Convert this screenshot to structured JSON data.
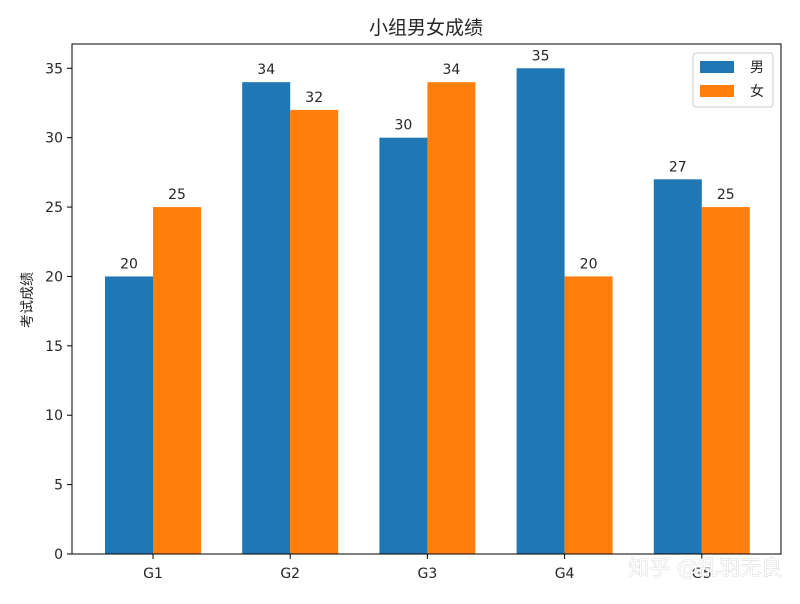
{
  "chart_data": {
    "type": "bar",
    "title": "小组男女成绩",
    "xlabel": "",
    "ylabel": "考试成绩",
    "categories": [
      "G1",
      "G2",
      "G3",
      "G4",
      "G5"
    ],
    "series": [
      {
        "name": "男",
        "color": "#1f77b4",
        "values": [
          20,
          34,
          30,
          35,
          27
        ]
      },
      {
        "name": "女",
        "color": "#ff7f0e",
        "values": [
          25,
          32,
          34,
          20,
          25
        ]
      }
    ],
    "ylim": [
      0,
      36.75
    ],
    "yticks": [
      0,
      5,
      10,
      15,
      20,
      25,
      30,
      35
    ],
    "grid": false,
    "legend_position": "top-right",
    "data_labels": true
  },
  "watermark": "知乎 @乱羽无良"
}
